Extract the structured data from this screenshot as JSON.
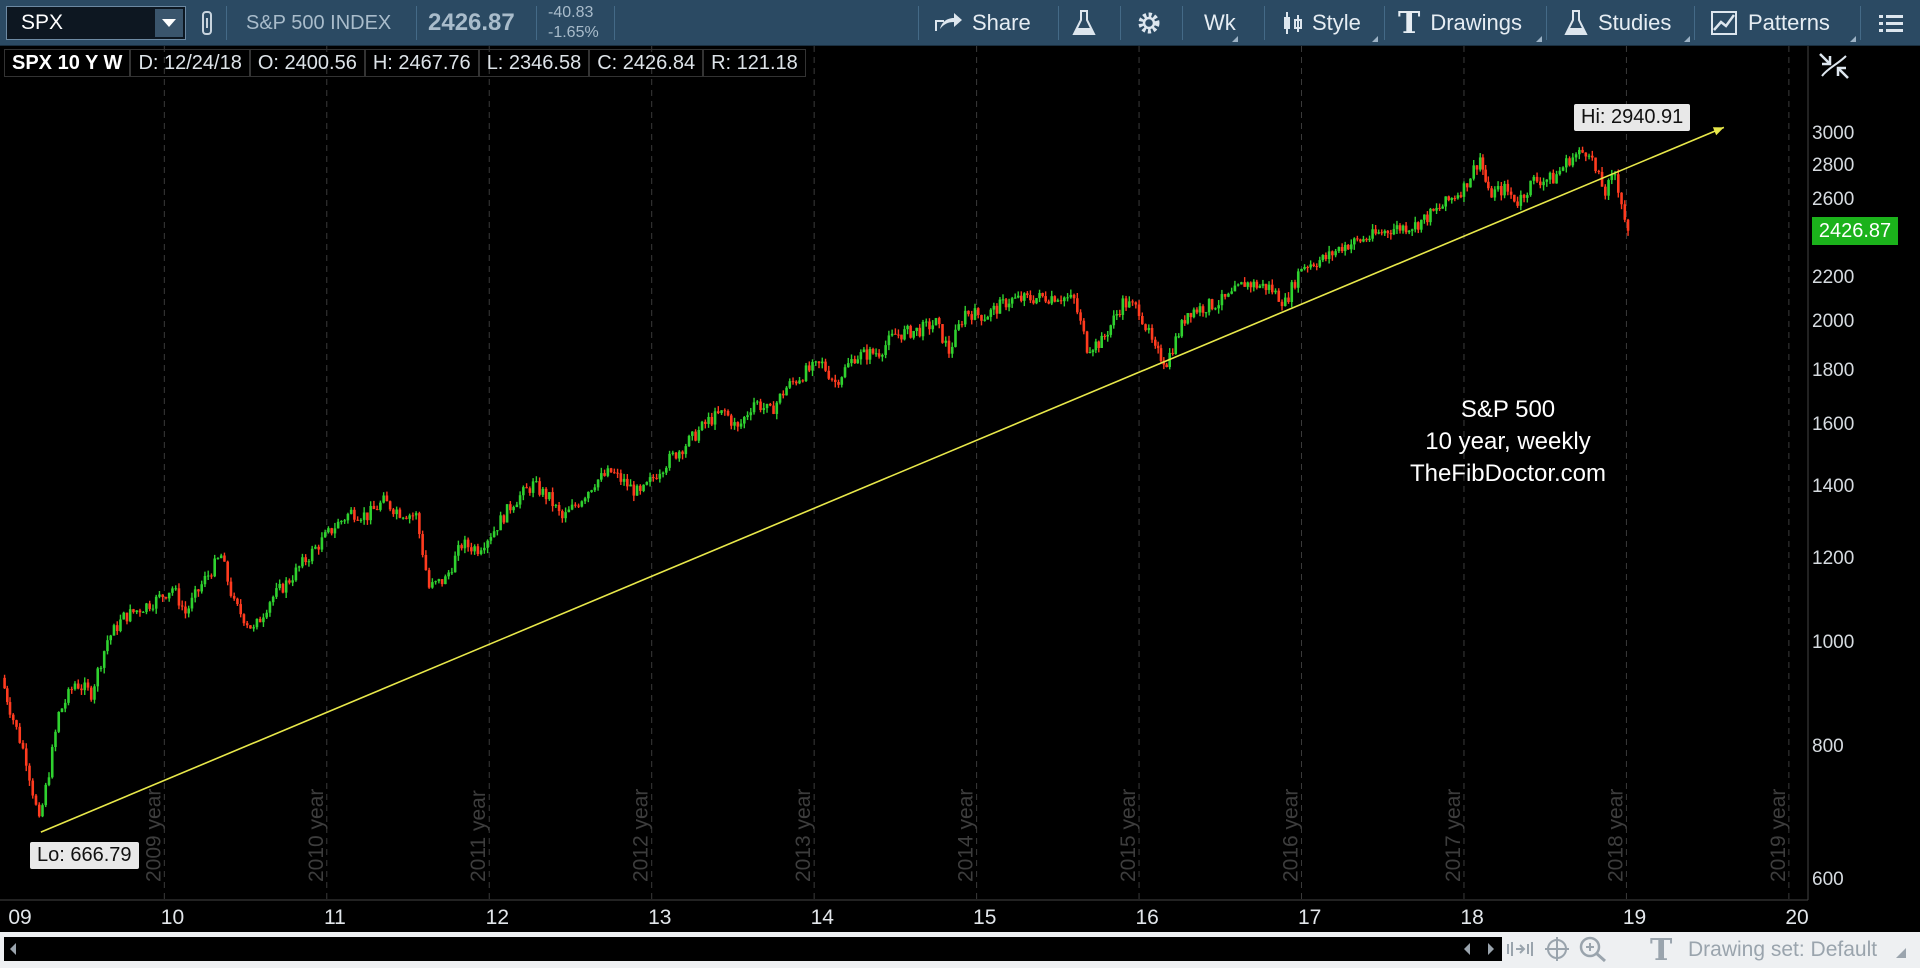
{
  "toolbar": {
    "symbol": "SPX",
    "instrument_name": "S&P 500 INDEX",
    "last_price": "2426.87",
    "change": "-40.83",
    "change_pct": "-1.65%",
    "share_label": "Share",
    "aggregation_label": "Wk",
    "style_label": "Style",
    "drawings_label": "Drawings",
    "studies_label": "Studies",
    "patterns_label": "Patterns"
  },
  "info_bar": {
    "study": "SPX 10 Y W",
    "date": "D: 12/24/18",
    "open": "O: 2400.56",
    "high": "H: 2467.76",
    "low": "L: 2346.58",
    "close": "C: 2426.84",
    "range": "R: 121.18"
  },
  "chart_data": {
    "type": "candlestick",
    "series_name": "SPX",
    "interval": "weekly",
    "y_scale": "log",
    "ylim": [
      570,
      3200
    ],
    "y_ticks": [
      "3000",
      "2800",
      "2600",
      "2200",
      "2000",
      "1800",
      "1600",
      "1400",
      "1200",
      "1000",
      "800",
      "600"
    ],
    "x_ticks": [
      "09",
      "10",
      "11",
      "12",
      "13",
      "14",
      "15",
      "16",
      "17",
      "18",
      "19",
      "20"
    ],
    "year_labels": [
      "2009 year",
      "2010 year",
      "2011 year",
      "2012 year",
      "2013 year",
      "2014 year",
      "2015 year",
      "2016 year",
      "2017 year",
      "2018 year",
      "2019 year"
    ],
    "last_price_tag": "2426.87",
    "high_label": "Hi: 2940.91",
    "low_label": "Lo: 666.79",
    "trendline": {
      "from": {
        "x": 2009.19,
        "y": 666.79
      },
      "to": {
        "x": 2019.55,
        "y": 3050
      }
    },
    "path": [
      [
        2008.95,
        930
      ],
      [
        2009.0,
        870
      ],
      [
        2009.1,
        780
      ],
      [
        2009.18,
        680
      ],
      [
        2009.24,
        760
      ],
      [
        2009.3,
        860
      ],
      [
        2009.4,
        920
      ],
      [
        2009.5,
        900
      ],
      [
        2009.6,
        1010
      ],
      [
        2009.7,
        1060
      ],
      [
        2009.8,
        1080
      ],
      [
        2009.9,
        1100
      ],
      [
        2010.0,
        1130
      ],
      [
        2010.08,
        1070
      ],
      [
        2010.2,
        1150
      ],
      [
        2010.3,
        1210
      ],
      [
        2010.38,
        1090
      ],
      [
        2010.5,
        1030
      ],
      [
        2010.6,
        1100
      ],
      [
        2010.7,
        1140
      ],
      [
        2010.8,
        1190
      ],
      [
        2010.9,
        1240
      ],
      [
        2011.0,
        1290
      ],
      [
        2011.1,
        1330
      ],
      [
        2011.2,
        1320
      ],
      [
        2011.3,
        1360
      ],
      [
        2011.4,
        1330
      ],
      [
        2011.5,
        1320
      ],
      [
        2011.58,
        1130
      ],
      [
        2011.68,
        1150
      ],
      [
        2011.78,
        1240
      ],
      [
        2011.88,
        1230
      ],
      [
        2011.98,
        1280
      ],
      [
        2012.1,
        1360
      ],
      [
        2012.22,
        1410
      ],
      [
        2012.32,
        1370
      ],
      [
        2012.4,
        1310
      ],
      [
        2012.5,
        1360
      ],
      [
        2012.6,
        1420
      ],
      [
        2012.7,
        1450
      ],
      [
        2012.8,
        1410
      ],
      [
        2012.88,
        1380
      ],
      [
        2013.0,
        1460
      ],
      [
        2013.1,
        1510
      ],
      [
        2013.2,
        1560
      ],
      [
        2013.3,
        1620
      ],
      [
        2013.4,
        1650
      ],
      [
        2013.48,
        1590
      ],
      [
        2013.58,
        1690
      ],
      [
        2013.68,
        1650
      ],
      [
        2013.78,
        1740
      ],
      [
        2013.9,
        1800
      ],
      [
        2014.0,
        1830
      ],
      [
        2014.08,
        1760
      ],
      [
        2014.2,
        1860
      ],
      [
        2014.35,
        1880
      ],
      [
        2014.45,
        1950
      ],
      [
        2014.6,
        1970
      ],
      [
        2014.7,
        2000
      ],
      [
        2014.78,
        1880
      ],
      [
        2014.88,
        2050
      ],
      [
        2015.0,
        2030
      ],
      [
        2015.15,
        2100
      ],
      [
        2015.3,
        2110
      ],
      [
        2015.45,
        2120
      ],
      [
        2015.55,
        2100
      ],
      [
        2015.63,
        1900
      ],
      [
        2015.72,
        1920
      ],
      [
        2015.85,
        2090
      ],
      [
        2015.95,
        2060
      ],
      [
        2016.05,
        1880
      ],
      [
        2016.12,
        1840
      ],
      [
        2016.25,
        2050
      ],
      [
        2016.4,
        2080
      ],
      [
        2016.5,
        2110
      ],
      [
        2016.6,
        2180
      ],
      [
        2016.75,
        2160
      ],
      [
        2016.85,
        2090
      ],
      [
        2016.95,
        2260
      ],
      [
        2017.1,
        2300
      ],
      [
        2017.2,
        2360
      ],
      [
        2017.35,
        2400
      ],
      [
        2017.5,
        2450
      ],
      [
        2017.65,
        2470
      ],
      [
        2017.8,
        2560
      ],
      [
        2017.95,
        2680
      ],
      [
        2018.05,
        2860
      ],
      [
        2018.1,
        2640
      ],
      [
        2018.2,
        2670
      ],
      [
        2018.28,
        2600
      ],
      [
        2018.38,
        2720
      ],
      [
        2018.5,
        2730
      ],
      [
        2018.6,
        2850
      ],
      [
        2018.72,
        2910
      ],
      [
        2018.76,
        2770
      ],
      [
        2018.82,
        2650
      ],
      [
        2018.88,
        2760
      ],
      [
        2018.92,
        2600
      ],
      [
        2018.96,
        2420
      ]
    ]
  },
  "annotation": {
    "line1": "S&P 500",
    "line2": "10 year, weekly",
    "line3": "TheFibDoctor.com"
  },
  "bottom_bar": {
    "drawing_set": "Drawing set: Default"
  },
  "colors": {
    "up": "#2fd12f",
    "down": "#ff3b1f",
    "trendline": "#e8e84a",
    "toolbar_bg": "#2b4a63",
    "price_tag": "#1bb21b"
  }
}
